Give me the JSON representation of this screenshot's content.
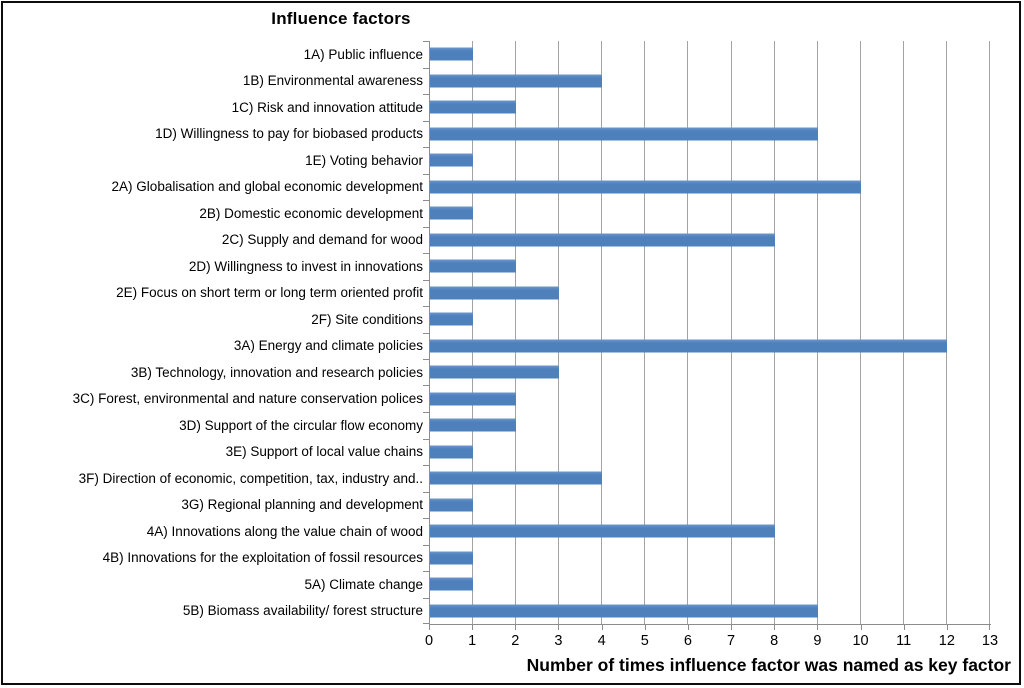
{
  "frame": {
    "background": "#ffffff",
    "border_color": "#0d0d0d"
  },
  "chart_data": {
    "type": "bar",
    "orientation": "horizontal",
    "title": "Influence factors",
    "xlabel": "Number of times influence factor was named as key factor",
    "ylabel": "",
    "categories": [
      "1A) Public influence",
      "1B) Environmental awareness",
      "1C) Risk and innovation attitude",
      "1D) Willingness to pay for biobased products",
      "1E) Voting behavior",
      "2A) Globalisation and global economic development",
      "2B) Domestic economic development",
      "2C) Supply and demand for wood",
      "2D) Willingness to invest in innovations",
      "2E) Focus on short term or long term oriented profit",
      "2F) Site conditions",
      "3A) Energy and climate policies",
      "3B) Technology, innovation and research policies",
      "3C) Forest, environmental and nature conservation polices",
      "3D) Support of the circular flow economy",
      "3E) Support of local value chains",
      "3F) Direction of economic, competition, tax, industry and..",
      "3G) Regional planning and development",
      "4A) Innovations along the value chain of wood",
      "4B) Innovations for the exploitation of fossil resources",
      "5A) Climate change",
      "5B) Biomass availability/ forest structure"
    ],
    "values": [
      1,
      4,
      2,
      9,
      1,
      10,
      1,
      8,
      2,
      3,
      1,
      12,
      3,
      2,
      2,
      1,
      4,
      1,
      8,
      1,
      1,
      9
    ],
    "xlim": [
      0,
      13
    ],
    "xticks": [
      0,
      1,
      2,
      3,
      4,
      5,
      6,
      7,
      8,
      9,
      10,
      11,
      12,
      13
    ],
    "grid": "vertical-gridlines-on",
    "legend": "none",
    "colors": {
      "bar": "#4e80bc",
      "bar_light": "#6b97cb",
      "gridline": "#a3a3a3",
      "axis": "#8c8c8c",
      "text": "#000000"
    }
  }
}
